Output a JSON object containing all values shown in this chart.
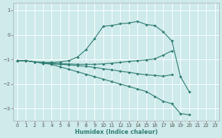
{
  "xlabel": "Humidex (Indice chaleur)",
  "bg_color": "#ceeaea",
  "grid_color": "#b8d8d8",
  "line_color": "#2e7d72",
  "xlim": [
    -0.5,
    23.5
  ],
  "ylim": [
    -3.5,
    1.3
  ],
  "yticks": [
    1,
    0,
    -1,
    -2,
    -3
  ],
  "xticks": [
    0,
    1,
    2,
    3,
    4,
    5,
    6,
    7,
    8,
    9,
    10,
    11,
    12,
    13,
    14,
    15,
    16,
    17,
    18,
    19,
    20,
    21,
    22,
    23
  ],
  "series": [
    {
      "x": [
        0,
        1,
        2,
        3,
        4,
        5,
        6,
        7,
        8,
        9,
        10,
        11,
        12,
        13,
        14,
        15,
        16,
        17,
        18,
        19,
        20
      ],
      "y": [
        -1.05,
        -1.05,
        -1.1,
        -1.15,
        -1.2,
        -1.3,
        -1.4,
        -1.5,
        -1.6,
        -1.7,
        -1.8,
        -1.9,
        -2.0,
        -2.1,
        -2.2,
        -2.3,
        -2.5,
        -2.7,
        -2.8,
        -3.2,
        -3.25
      ],
      "marker": true,
      "style": "-"
    },
    {
      "x": [
        0,
        1,
        2,
        3,
        4,
        5,
        6,
        7,
        8,
        9,
        10,
        11,
        12,
        13,
        14,
        15,
        16,
        17,
        18
      ],
      "y": [
        -1.05,
        -1.05,
        -1.1,
        -1.15,
        -1.18,
        -1.2,
        -1.22,
        -1.25,
        -1.28,
        -1.32,
        -1.38,
        -1.42,
        -1.48,
        -1.52,
        -1.58,
        -1.62,
        -1.65,
        -1.68,
        -1.62
      ],
      "marker": true,
      "style": "-"
    },
    {
      "x": [
        0,
        1,
        2,
        3,
        4,
        5,
        6,
        7,
        8,
        9,
        10,
        11,
        12,
        13,
        14,
        15,
        16,
        17,
        18
      ],
      "y": [
        -1.05,
        -1.05,
        -1.1,
        -1.12,
        -1.15,
        -1.17,
        -1.18,
        -1.2,
        -1.2,
        -1.2,
        -1.18,
        -1.15,
        -1.12,
        -1.08,
        -1.05,
        -1.02,
        -0.98,
        -0.82,
        -0.65
      ],
      "marker": true,
      "style": "-"
    },
    {
      "x": [
        0,
        1,
        2,
        3,
        4,
        5,
        6,
        7,
        8,
        9,
        10,
        11,
        12,
        13,
        14,
        15,
        16,
        17,
        18,
        19,
        20
      ],
      "y": [
        -1.05,
        -1.05,
        -1.1,
        -1.12,
        -1.12,
        -1.1,
        -1.05,
        -0.9,
        -0.6,
        -0.15,
        0.35,
        0.38,
        0.45,
        0.48,
        0.55,
        0.42,
        0.38,
        0.12,
        -0.25,
        -1.7,
        -2.3
      ],
      "marker": true,
      "style": "-"
    }
  ]
}
